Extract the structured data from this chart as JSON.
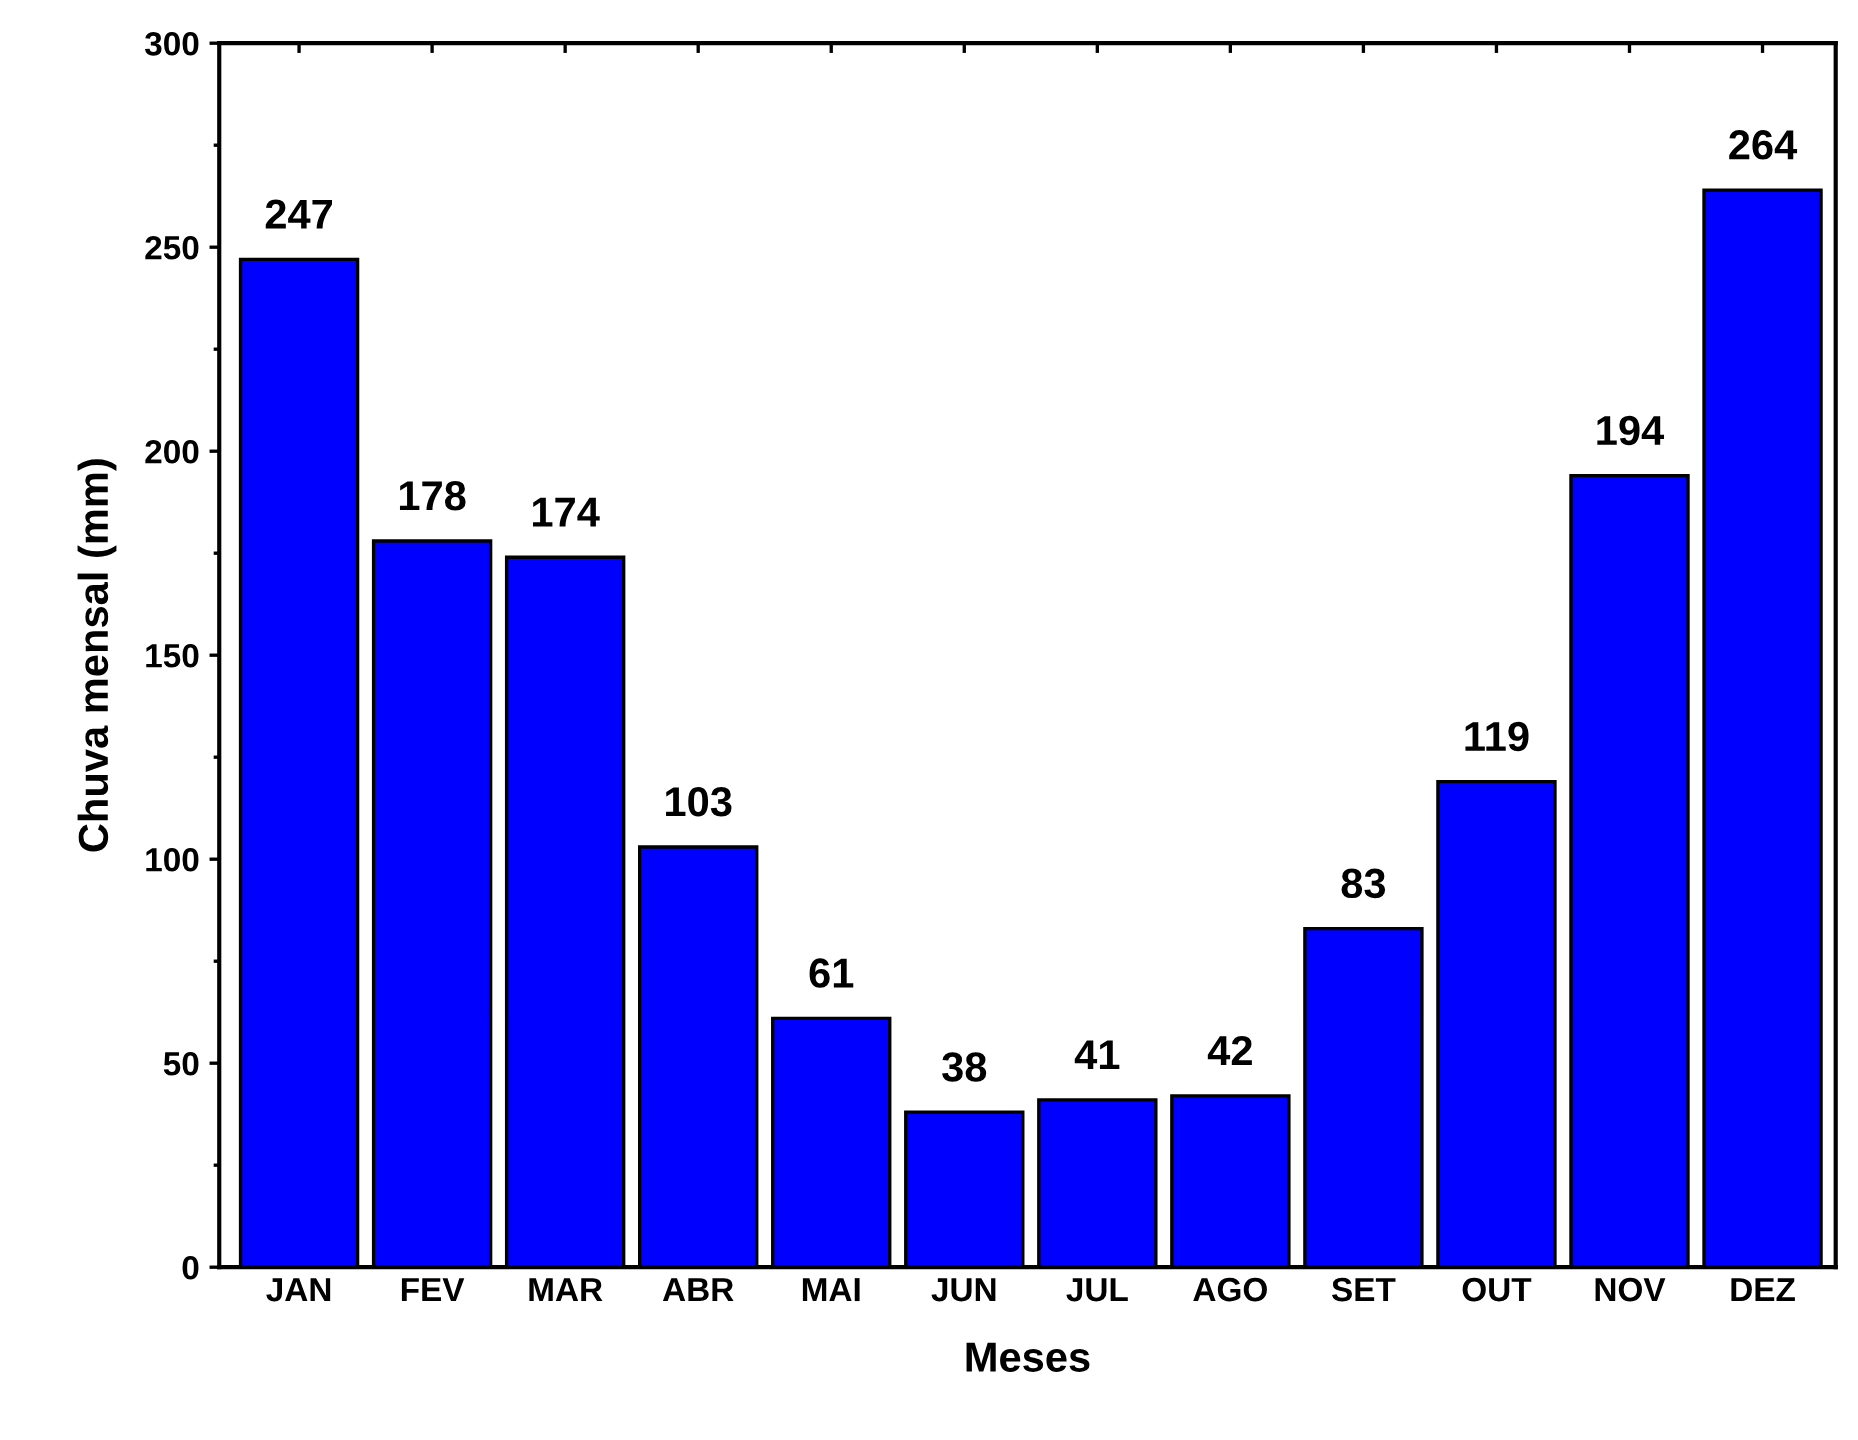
{
  "chart_data": {
    "type": "bar",
    "xlabel": "Meses",
    "ylabel": "Chuva mensal (mm)",
    "categories": [
      "JAN",
      "FEV",
      "MAR",
      "ABR",
      "MAI",
      "JUN",
      "JUL",
      "AGO",
      "SET",
      "OUT",
      "NOV",
      "DEZ"
    ],
    "values": [
      247,
      178,
      174,
      103,
      61,
      38,
      41,
      42,
      83,
      119,
      194,
      264
    ],
    "color": "#0000ff",
    "ylim": [
      0,
      300
    ],
    "yticks": [
      0,
      50,
      100,
      150,
      200,
      250,
      300
    ],
    "data_labels": true,
    "grid": false
  }
}
